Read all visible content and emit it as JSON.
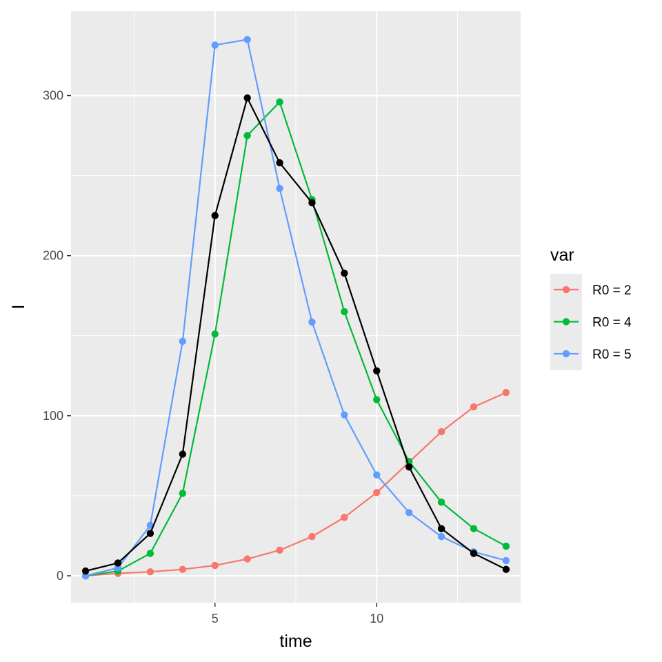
{
  "chart_data": {
    "type": "line",
    "xlabel": "time",
    "ylabel": "I",
    "xlim": [
      0.55,
      14.45
    ],
    "ylim": [
      -16.8,
      352.8
    ],
    "xticks": [
      5,
      10
    ],
    "x_minor_ticks": [
      2.5,
      7.5,
      12.5
    ],
    "yticks": [
      0,
      100,
      200,
      300
    ],
    "y_minor_ticks": [
      50,
      150,
      250
    ],
    "grid": true,
    "background": "#ebebeb",
    "legend": {
      "title": "var",
      "position": "right",
      "entries": [
        {
          "label": "R0 = 2",
          "color": "#F8766D"
        },
        {
          "label": "R0 = 4",
          "color": "#00BA38"
        },
        {
          "label": "R0 = 5",
          "color": "#619CFF"
        }
      ]
    },
    "x": [
      1,
      2,
      3,
      4,
      5,
      6,
      7,
      8,
      9,
      10,
      11,
      12,
      13,
      14
    ],
    "series": [
      {
        "name": "R0 = 2",
        "color": "#F8766D",
        "values": [
          0,
          1.5,
          2.5,
          4,
          6.5,
          10.5,
          16,
          24.5,
          36.5,
          52,
          71,
          90,
          105.5,
          114.5
        ]
      },
      {
        "name": "R0 = 4",
        "color": "#00BA38",
        "values": [
          0,
          3,
          14,
          51.5,
          151,
          275,
          296,
          235,
          165,
          110,
          71.5,
          46,
          29.5,
          18.5
        ]
      },
      {
        "name": "R0 = 5",
        "color": "#619CFF",
        "values": [
          0,
          5,
          31.5,
          146.5,
          331.5,
          335,
          242,
          158.5,
          100.5,
          63,
          39.5,
          24.5,
          15,
          9.5
        ]
      },
      {
        "color": "#000000",
        "values": [
          3,
          8,
          26.5,
          76,
          225,
          298.5,
          258,
          233,
          189,
          128,
          68,
          29.5,
          14,
          4
        ]
      }
    ]
  }
}
